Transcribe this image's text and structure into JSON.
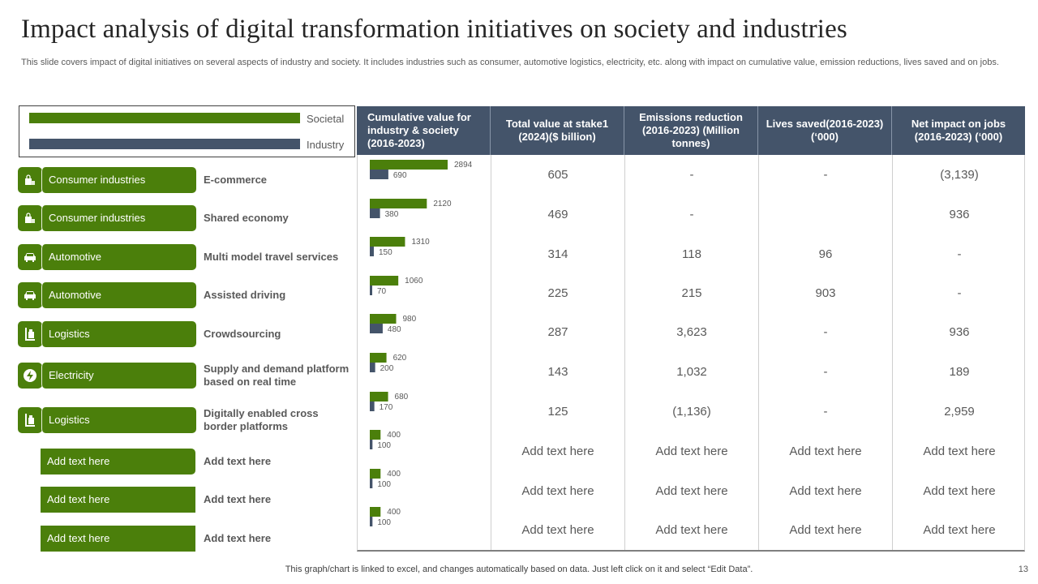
{
  "title": "Impact analysis of digital transformation initiatives on society and industries",
  "subtitle": "This slide covers impact of digital initiatives on several aspects of industry and society. It includes industries such as consumer, automotive logistics, electricity, etc.  along with impact on cumulative value, emission reductions, lives saved and on jobs.",
  "colors": {
    "societal": "#4b7f0b",
    "industry": "#44546a",
    "header_bg": "#44546a"
  },
  "legend": [
    {
      "label": "Societal",
      "color": "#4b7f0b"
    },
    {
      "label": "Industry",
      "color": "#44546a"
    }
  ],
  "rows": [
    {
      "icon": "shopping-bag-icon",
      "category": "Consumer  industries",
      "initiative": "E-commerce"
    },
    {
      "icon": "shopping-bag-icon",
      "category": "Consumer  industries",
      "initiative": "Shared economy"
    },
    {
      "icon": "car-icon",
      "category": "Automotive",
      "initiative": "Multi model travel services"
    },
    {
      "icon": "car-icon",
      "category": "Automotive",
      "initiative": "Assisted  driving"
    },
    {
      "icon": "hand-truck-icon",
      "category": "Logistics",
      "initiative": "Crowdsourcing"
    },
    {
      "icon": "lightning-icon",
      "category": "Electricity",
      "initiative": "Supply and demand platform based on real time"
    },
    {
      "icon": "hand-truck-icon",
      "category": "Logistics",
      "initiative": "Digitally enabled cross border platforms"
    },
    {
      "icon": null,
      "category": "Add text here",
      "initiative": "Add  text here"
    },
    {
      "icon": null,
      "category": "Add text here",
      "initiative": "Add  text here"
    },
    {
      "icon": null,
      "category": "Add text here",
      "initiative": "Add  text here"
    }
  ],
  "table": {
    "headers": [
      "Cumulative value for industry  & society (2016-2023)",
      "Total value at stake1 (2024)($  billion)",
      "Emissions  reduction (2016-2023)  (Million tonnes)",
      "Lives saved(2016-2023) (‘000)",
      "Net impact on jobs (2016-2023)  (‘000)"
    ],
    "rows": [
      [
        "605",
        "-",
        "-",
        "(3,139)"
      ],
      [
        "469",
        "-",
        "",
        "936"
      ],
      [
        "314",
        "118",
        "96",
        "-"
      ],
      [
        "225",
        "215",
        "903",
        "-"
      ],
      [
        "287",
        "3,623",
        "-",
        "936"
      ],
      [
        "143",
        "1,032",
        "-",
        "189"
      ],
      [
        "125",
        "(1,136)",
        "-",
        "2,959"
      ],
      [
        "Add text here",
        "Add text here",
        "Add text here",
        "Add text here"
      ],
      [
        "Add text here",
        "Add text here",
        "Add text here",
        "Add text here"
      ],
      [
        "Add text here",
        "Add text here",
        "Add text here",
        "Add text here"
      ]
    ]
  },
  "chart_data": {
    "type": "bar",
    "orientation": "horizontal",
    "title": "Cumulative value for industry & society (2016-2023)",
    "categories": [
      "E-commerce",
      "Shared economy",
      "Multi model travel services",
      "Assisted driving",
      "Crowdsourcing",
      "Supply and demand platform based on real time",
      "Digitally enabled cross border platforms",
      "Add text here",
      "Add text here",
      "Add text here"
    ],
    "series": [
      {
        "name": "Societal",
        "values": [
          2894,
          2120,
          1310,
          1060,
          980,
          620,
          680,
          400,
          400,
          400
        ]
      },
      {
        "name": "Industry",
        "values": [
          690,
          380,
          150,
          70,
          480,
          200,
          170,
          100,
          100,
          100
        ]
      }
    ],
    "xlim": [
      0,
      3000
    ],
    "grid": false,
    "legend_position": "top-left"
  },
  "footer": "This graph/chart is linked to excel,  and changes automatically based on data. Just left click on it and select “Edit Data”.",
  "page_number": "13"
}
